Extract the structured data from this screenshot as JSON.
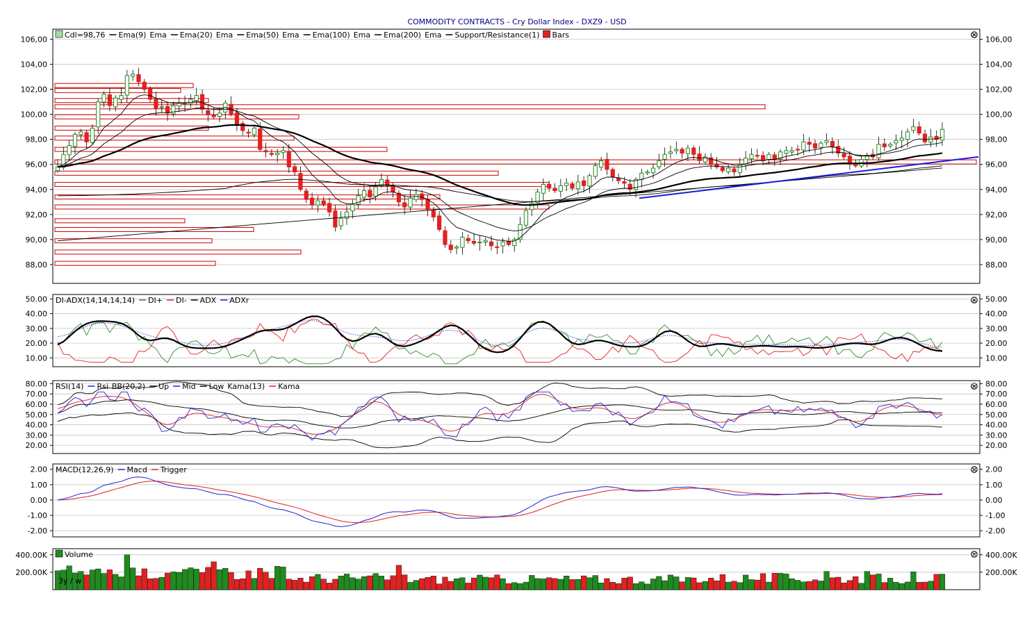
{
  "title": "COMMODITY CONTRACTS - Cry Dollar Index - DXZ9 - USD",
  "colors": {
    "up": "#1e8c1e",
    "down": "#e32020",
    "ema": "#000000",
    "support": "#cc0000",
    "trend": "#1a1adf",
    "grid": "#bdbdbd",
    "diplus": "#2e8b2e",
    "diminus": "#e32020",
    "adxr": "#2020d0"
  },
  "price_panel": {
    "legend": [
      "Cdl=98,76",
      "Ema(9)",
      "Ema",
      "Ema(20)",
      "Ema",
      "Ema(50)",
      "Ema",
      "Ema(100)",
      "Ema",
      "Ema(200)",
      "Ema",
      "Support/Resistance(1)",
      "Bars"
    ],
    "ticks": [
      "106,00",
      "104,00",
      "102,00",
      "100,00",
      "98,00",
      "96,00",
      "94,00",
      "92,00",
      "90,00",
      "88,00"
    ]
  },
  "adx_panel": {
    "legend": [
      "DI-ADX(14,14,14,14)",
      "DI+",
      "DI-",
      "ADX",
      "ADXr"
    ],
    "ticks": [
      "50.00",
      "40.00",
      "30.00",
      "20.00",
      "10.00"
    ]
  },
  "rsi_panel": {
    "legend": [
      "RSI(14)",
      "Rsi",
      "BB(20,2)",
      "Up",
      "Mid",
      "Low",
      "Kama(13)",
      "Kama"
    ],
    "ticks": [
      "80.00",
      "70.00",
      "60.00",
      "50.00",
      "40.00",
      "30.00",
      "20.00"
    ]
  },
  "macd_panel": {
    "legend": [
      "MACD(12,26,9)",
      "Macd",
      "Trigger"
    ],
    "ticks": [
      "2.00",
      "1.00",
      "0.00",
      "-1.00",
      "-2.00"
    ]
  },
  "volume_panel": {
    "legend": [
      "Volume"
    ],
    "ticks": [
      "400.00K",
      "200.00K"
    ],
    "watermark": "3y / w"
  },
  "chart_data": [
    {
      "type": "candlestick",
      "ylim": [
        86.5,
        106.8
      ],
      "candle_close_path": [
        95.8,
        96.8,
        97.5,
        98.4,
        98.6,
        97.8,
        98.9,
        101.0,
        101.6,
        100.7,
        101.3,
        101.5,
        103.1,
        103.2,
        102.6,
        102.0,
        101.2,
        100.5,
        100.6,
        100.1,
        100.7,
        100.9,
        100.9,
        101.2,
        101.5,
        100.4,
        100.0,
        99.8,
        100.1,
        100.9,
        100.0,
        99.2,
        98.7,
        98.5,
        98.9,
        97.2,
        97.0,
        96.8,
        96.9,
        97.1,
        95.8,
        95.4,
        94.0,
        93.2,
        92.8,
        93.1,
        92.8,
        92.2,
        91.0,
        91.7,
        92.2,
        92.8,
        93.5,
        93.9,
        93.4,
        94.2,
        94.8,
        94.3,
        93.8,
        93.0,
        92.6,
        93.3,
        93.6,
        93.2,
        92.4,
        91.8,
        90.8,
        89.6,
        89.2,
        89.4,
        90.2,
        89.9,
        89.7,
        89.8,
        89.9,
        89.5,
        89.4,
        89.8,
        89.6,
        90.0,
        91.2,
        92.3,
        92.9,
        93.8,
        94.4,
        94.1,
        93.9,
        94.3,
        94.5,
        94.1,
        94.6,
        94.3,
        95.1,
        95.9,
        96.3,
        95.6,
        95.0,
        94.7,
        94.5,
        94.0,
        94.8,
        95.3,
        95.4,
        95.7,
        96.3,
        96.8,
        97.0,
        97.2,
        96.9,
        97.3,
        96.8,
        96.3,
        96.6,
        96.0,
        95.8,
        95.5,
        95.7,
        95.4,
        96.0,
        96.5,
        96.8,
        96.7,
        96.3,
        96.8,
        96.4,
        97.0,
        97.1,
        97.1,
        97.2,
        97.8,
        97.6,
        97.3,
        97.7,
        97.9,
        97.4,
        96.9,
        96.6,
        96.0,
        95.9,
        96.4,
        96.7,
        96.6,
        97.6,
        97.4,
        97.6,
        97.9,
        98.1,
        98.6,
        99.0,
        98.5,
        97.8,
        98.2,
        98.0,
        98.8
      ]
    },
    {
      "type": "line",
      "name": "DI-ADX",
      "ylim": [
        4,
        53
      ]
    },
    {
      "type": "line",
      "name": "RSI",
      "ylim": [
        12,
        83
      ]
    },
    {
      "type": "line",
      "name": "MACD",
      "ylim": [
        -2.4,
        2.35
      ]
    },
    {
      "type": "bar",
      "name": "Volume",
      "ylim": [
        0,
        470
      ]
    }
  ]
}
